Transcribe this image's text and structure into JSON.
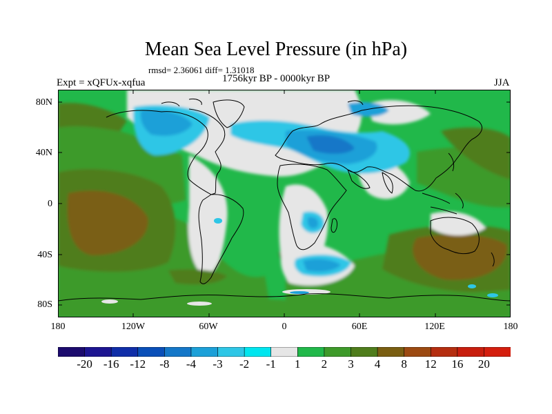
{
  "title": "Mean Sea Level Pressure (in hPa)",
  "stats": "rmsd= 2.36061 diff= 1.31018",
  "period": "1756kyr BP - 0000kyr BP",
  "experiment": "Expt = xQFUx-xqfua",
  "season": "JJA",
  "lat_labels": [
    "80N",
    "40N",
    "0",
    "40S",
    "80S"
  ],
  "lon_labels": [
    "180",
    "120W",
    "60W",
    "0",
    "60E",
    "120E",
    "180"
  ],
  "colorbar": {
    "labels": [
      "-20",
      "-16",
      "-12",
      "-8",
      "-4",
      "-3",
      "-2",
      "-1",
      "1",
      "2",
      "3",
      "4",
      "8",
      "12",
      "16",
      "20"
    ],
    "colors": [
      "#1c0b6e",
      "#1d1591",
      "#102ea8",
      "#0a4fb8",
      "#1477c8",
      "#1ca0d8",
      "#2ec6e6",
      "#00e6ef",
      "#e6e6e6",
      "#21b84a",
      "#3e9a2a",
      "#4f7d1c",
      "#7a5e12",
      "#9c4a12",
      "#b52e10",
      "#c81e0e",
      "#d41e0e"
    ]
  },
  "palette": {
    "land_outline": "#000000",
    "neutral": "#e6e6e6",
    "green_light": "#21b84a",
    "green_mid": "#3e9a2a",
    "olive": "#4f7d1c",
    "brown": "#7a5e12",
    "cyan": "#00e6ef",
    "sky": "#2ec6e6",
    "blue": "#1ca0d8"
  }
}
